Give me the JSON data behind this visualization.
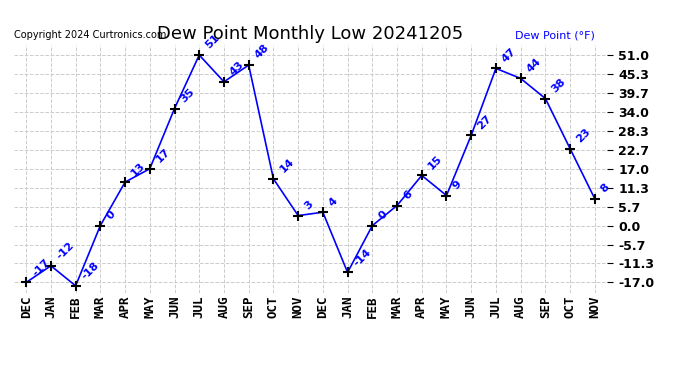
{
  "title": "Dew Point Monthly Low 20241205",
  "copyright": "Copyright 2024 Curtronics.com",
  "legend_label": "Dew Point (°F)",
  "months": [
    "DEC",
    "JAN",
    "FEB",
    "MAR",
    "APR",
    "MAY",
    "JUN",
    "JUL",
    "AUG",
    "SEP",
    "OCT",
    "NOV",
    "DEC",
    "JAN",
    "FEB",
    "MAR",
    "APR",
    "MAY",
    "JUN",
    "JUL",
    "AUG",
    "SEP",
    "OCT",
    "NOV"
  ],
  "values": [
    -17,
    -12,
    -18,
    0,
    13,
    17,
    35,
    51,
    43,
    48,
    14,
    3,
    4,
    -14,
    0,
    6,
    15,
    9,
    27,
    47,
    44,
    38,
    23,
    8
  ],
  "line_color": "blue",
  "marker": "+",
  "marker_size": 7,
  "marker_color": "black",
  "label_color": "blue",
  "label_fontsize": 8,
  "yticks": [
    -17.0,
    -11.3,
    -5.7,
    0.0,
    5.7,
    11.3,
    17.0,
    22.7,
    28.3,
    34.0,
    39.7,
    45.3,
    51.0
  ],
  "ylim": [
    -20,
    54
  ],
  "background_color": "#ffffff",
  "grid_color": "#cccccc",
  "title_fontsize": 13,
  "tick_fontsize": 9,
  "ytick_fontsize": 9
}
